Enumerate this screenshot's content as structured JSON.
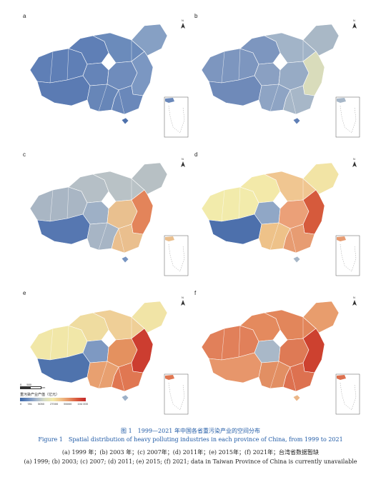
{
  "panels": [
    {
      "label": "a",
      "colors": {
        "w": "#5f7fb6",
        "nw": "#5f7fb6",
        "tibet": "#5b7bb3",
        "qh": "#6584b8",
        "im": "#6b8bbb",
        "ne": "#86a0c4",
        "c": "#6f8cbc",
        "e": "#7b97c2",
        "s": "#6a88ba",
        "sw": "#6786b8",
        "hn": "#4e71ac"
      }
    },
    {
      "label": "b",
      "colors": {
        "w": "#7d96bf",
        "nw": "#7d96bf",
        "tibet": "#6f8ab9",
        "qh": "#8aa0c2",
        "im": "#a2b4c8",
        "ne": "#a9b8c6",
        "c": "#97abc5",
        "e": "#d9dcbb",
        "s": "#a7b7c8",
        "sw": "#8ea4c4",
        "hn": "#5f7fb6"
      }
    },
    {
      "label": "c",
      "colors": {
        "w": "#a9b6c4",
        "nw": "#b5bfc6",
        "tibet": "#5677b1",
        "qh": "#9eb0c6",
        "im": "#b9c2c6",
        "ne": "#b7c0c4",
        "c": "#e9c08f",
        "e": "#e3845a",
        "s": "#eabf8e",
        "sw": "#a7b5c5",
        "hn": "#7694c2"
      }
    },
    {
      "label": "d",
      "colors": {
        "w": "#f2ebab",
        "nw": "#f3e9a9",
        "tibet": "#4d70ac",
        "qh": "#90a7c6",
        "im": "#f0c691",
        "ne": "#f2e4a5",
        "c": "#eba078",
        "e": "#d65a3c",
        "s": "#e79c72",
        "sw": "#eec289",
        "hn": "#a6b6c7"
      }
    },
    {
      "label": "e",
      "colors": {
        "w": "#f1e7a8",
        "nw": "#efdca0",
        "tibet": "#4f73ad",
        "qh": "#7e99c2",
        "im": "#efcf97",
        "ne": "#f1e4a6",
        "c": "#e4915f",
        "e": "#cc3d30",
        "s": "#e07752",
        "sw": "#e8a070",
        "hn": "#9db1c8"
      }
    },
    {
      "label": "f",
      "colors": {
        "w": "#e1805a",
        "nw": "#e48a5e",
        "tibet": "#e7966b",
        "qh": "#a9b8c8",
        "im": "#e2865b",
        "ne": "#e89d6d",
        "c": "#de7a55",
        "e": "#cd412f",
        "s": "#dd7150",
        "sw": "#e28f63",
        "hn": "#ebb687"
      }
    }
  ],
  "legend": {
    "scale_start": "0",
    "scale_mid": "500",
    "scale_unit": "km",
    "title": "重污染产业产值（亿元）",
    "ticks": [
      "0",
      "781",
      "5050",
      "27000",
      "55000",
      "104 000"
    ]
  },
  "captions": {
    "title_cn": "图 1　1999—2021 年中国各省重污染产业的空间分布",
    "title_en": "Figure 1　Spatial distribution of heavy polluting industries in each province of China, from 1999 to 2021",
    "sub_cn": "(a) 1999 年；(b) 2003 年；(c) 2007年；(d) 2011年；(e) 2015年；(f) 2021年；台湾省数据暂缺",
    "sub_en": "(a) 1999; (b) 2003; (c) 2007; (d) 2011; (e) 2015; (f) 2021; data in Taiwan Province of China is currently unavailable"
  }
}
